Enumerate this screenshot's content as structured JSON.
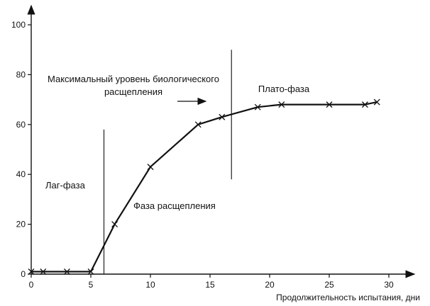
{
  "chart_data": {
    "type": "line",
    "title": "",
    "xlabel": "Продолжительность испытания, дни",
    "ylabel": "",
    "xlim": [
      0,
      32
    ],
    "ylim": [
      0,
      105
    ],
    "xticks": [
      0,
      5,
      10,
      15,
      20,
      25,
      30
    ],
    "yticks": [
      0,
      20,
      40,
      60,
      80,
      100
    ],
    "grid": false,
    "series": [
      {
        "x": [
          0,
          1,
          3,
          5,
          7,
          10,
          14,
          16,
          19,
          21,
          25,
          28,
          29
        ],
        "y": [
          1,
          1,
          1,
          1,
          20,
          43,
          60,
          63,
          67,
          68,
          68,
          68,
          69
        ]
      }
    ],
    "vlines": [
      {
        "x": 6.1,
        "y_from": 0,
        "y_to": 58
      },
      {
        "x": 16.8,
        "y_from": 38,
        "y_to": 90
      }
    ],
    "annotations": [
      {
        "id": "lag-phase",
        "lines": [
          "Лаг-фаза"
        ]
      },
      {
        "id": "split-phase",
        "lines": [
          "Фаза расщепления"
        ]
      },
      {
        "id": "max-level",
        "lines": [
          "Максимальный уровень биологического",
          "расщепления"
        ]
      },
      {
        "id": "plateau",
        "lines": [
          "Плато-фаза"
        ]
      }
    ]
  }
}
